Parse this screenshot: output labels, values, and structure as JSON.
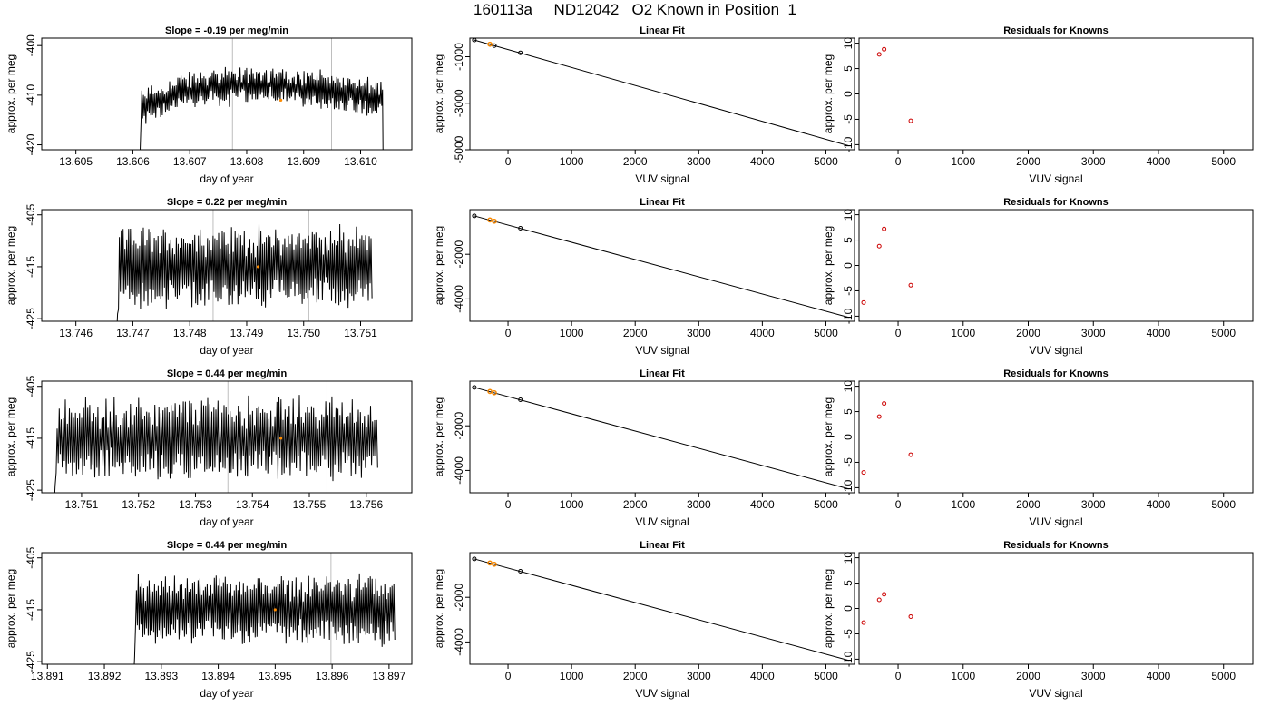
{
  "figure_title": "160113a     ND12042   O2 Known in Position  1",
  "colors": {
    "line": "#000000",
    "marker_fit": "#FF8C00",
    "marker_resid": "#CC0000",
    "vline": "#BEBEBE"
  },
  "chart_data": [
    {
      "type": "line",
      "title": "Slope =  -0.19  per meg/min",
      "xlabel": "day of year",
      "ylabel": "approx. per meg",
      "xlim": [
        13.6044,
        13.6109
      ],
      "ylim": [
        -421,
        -398.5
      ],
      "xticks": [
        13.605,
        13.606,
        13.607,
        13.608,
        13.609,
        13.61
      ],
      "xtick_labels": [
        "13.605",
        "13.606",
        "13.607",
        "13.608",
        "13.609",
        "13.610"
      ],
      "yticks": [
        -420,
        -410,
        -400
      ],
      "ytick_labels": [
        "-420",
        "-410",
        "-400"
      ],
      "vlines": [
        13.60775,
        13.60949
      ],
      "series": {
        "x_start": 13.6061,
        "x_end": 13.6104,
        "n": 300,
        "shape": "A",
        "base": -411,
        "amp": 3,
        "noise": 2.5,
        "dip_level": -430,
        "peak_bump": 3
      },
      "highlight": {
        "x": 13.6086,
        "y": -411
      }
    },
    {
      "type": "scatter",
      "title": "Linear Fit",
      "xlabel": "VUV signal",
      "ylabel": "approx. per meg",
      "xlim": [
        -600,
        5450
      ],
      "ylim": [
        -5000,
        -200
      ],
      "xticks": [
        0,
        1000,
        2000,
        3000,
        4000,
        5000
      ],
      "xtick_labels": [
        "0",
        "1000",
        "2000",
        "3000",
        "4000",
        "5000"
      ],
      "yticks": [
        -5000,
        -3000,
        -1000
      ],
      "ytick_labels": [
        "-5000",
        "-3000",
        "-1000"
      ],
      "fit_line": {
        "x1": -530,
        "y1": -282,
        "x2": 5360,
        "y2": -4828
      },
      "points": [
        {
          "x": -530,
          "y": -282
        },
        {
          "x": -285,
          "y": -463
        },
        {
          "x": -215,
          "y": -520
        },
        {
          "x": 195,
          "y": -832
        }
      ],
      "highlight_points": [
        {
          "x": -285,
          "y": -463
        }
      ]
    },
    {
      "type": "scatter",
      "title": "Residuals for Knowns",
      "xlabel": "VUV signal",
      "ylabel": "approx. per meg",
      "xlim": [
        -600,
        5450
      ],
      "ylim": [
        -11,
        11
      ],
      "xticks": [
        0,
        1000,
        2000,
        3000,
        4000,
        5000
      ],
      "xtick_labels": [
        "0",
        "1000",
        "2000",
        "3000",
        "4000",
        "5000"
      ],
      "yticks": [
        -10,
        -5,
        0,
        5,
        10
      ],
      "ytick_labels": [
        "-10",
        "-5",
        "0",
        "5",
        "10"
      ],
      "points": [
        {
          "x": -290,
          "y": 7.8
        },
        {
          "x": -215,
          "y": 8.8
        },
        {
          "x": 195,
          "y": -5.3
        }
      ]
    },
    {
      "type": "line",
      "title": "Slope =  0.22  per meg/min",
      "xlabel": "day of year",
      "ylabel": "approx. per meg",
      "xlim": [
        13.7454,
        13.7519
      ],
      "ylim": [
        -425.5,
        -404
      ],
      "xticks": [
        13.746,
        13.747,
        13.748,
        13.749,
        13.75,
        13.751
      ],
      "xtick_labels": [
        "13.746",
        "13.747",
        "13.748",
        "13.749",
        "13.750",
        "13.751"
      ],
      "yticks": [
        -425,
        -415,
        -405
      ],
      "ytick_labels": [
        "-425",
        "-415",
        "-405"
      ],
      "vlines": [
        13.74841,
        13.75009
      ],
      "series": {
        "x_start": 13.7467,
        "x_end": 13.7512,
        "n": 280,
        "shape": "osc",
        "base": -415,
        "amp": 7,
        "noise": 3,
        "dip_level": -432
      },
      "highlight": {
        "x": 13.7492,
        "y": -415
      }
    },
    {
      "type": "scatter",
      "title": "Linear Fit",
      "xlabel": "VUV signal",
      "ylabel": "approx. per meg",
      "xlim": [
        -600,
        5450
      ],
      "ylim": [
        -5000,
        0
      ],
      "xticks": [
        0,
        1000,
        2000,
        3000,
        4000,
        5000
      ],
      "xtick_labels": [
        "0",
        "1000",
        "2000",
        "3000",
        "4000",
        "5000"
      ],
      "yticks": [
        -4000,
        -2000
      ],
      "ytick_labels": [
        "-4000",
        "-2000"
      ],
      "fit_line": {
        "x1": -530,
        "y1": -282,
        "x2": 5360,
        "y2": -4828
      },
      "points": [
        {
          "x": -530,
          "y": -282
        },
        {
          "x": -285,
          "y": -463
        },
        {
          "x": -215,
          "y": -520
        },
        {
          "x": 195,
          "y": -832
        }
      ],
      "highlight_points": [
        {
          "x": -285,
          "y": -463
        },
        {
          "x": -215,
          "y": -520
        }
      ]
    },
    {
      "type": "scatter",
      "title": "Residuals for Knowns",
      "xlabel": "VUV signal",
      "ylabel": "approx. per meg",
      "xlim": [
        -600,
        5450
      ],
      "ylim": [
        -11,
        11
      ],
      "xticks": [
        0,
        1000,
        2000,
        3000,
        4000,
        5000
      ],
      "xtick_labels": [
        "0",
        "1000",
        "2000",
        "3000",
        "4000",
        "5000"
      ],
      "yticks": [
        -10,
        -5,
        0,
        5,
        10
      ],
      "ytick_labels": [
        "-10",
        "-5",
        "0",
        "5",
        "10"
      ],
      "points": [
        {
          "x": -530,
          "y": -7.3
        },
        {
          "x": -290,
          "y": 3.8
        },
        {
          "x": -215,
          "y": 7.2
        },
        {
          "x": 195,
          "y": -3.9
        }
      ]
    },
    {
      "type": "line",
      "title": "Slope =  0.44  per meg/min",
      "xlabel": "day of year",
      "ylabel": "approx. per meg",
      "xlim": [
        13.7503,
        13.7568
      ],
      "ylim": [
        -425.5,
        -404
      ],
      "xticks": [
        13.751,
        13.752,
        13.753,
        13.754,
        13.755,
        13.756
      ],
      "xtick_labels": [
        "13.751",
        "13.752",
        "13.753",
        "13.754",
        "13.755",
        "13.756"
      ],
      "yticks": [
        -425,
        -415,
        -405
      ],
      "ytick_labels": [
        "-425",
        "-415",
        "-405"
      ],
      "vlines": [
        13.75357,
        13.75531
      ],
      "series": {
        "x_start": 13.7505,
        "x_end": 13.7562,
        "n": 320,
        "shape": "osc",
        "base": -415,
        "amp": 7,
        "noise": 3.5,
        "dip_level": -432
      },
      "highlight": {
        "x": 13.7545,
        "y": -415
      }
    },
    {
      "type": "scatter",
      "title": "Linear Fit",
      "xlabel": "VUV signal",
      "ylabel": "approx. per meg",
      "xlim": [
        -600,
        5450
      ],
      "ylim": [
        -5000,
        0
      ],
      "xticks": [
        0,
        1000,
        2000,
        3000,
        4000,
        5000
      ],
      "xtick_labels": [
        "0",
        "1000",
        "2000",
        "3000",
        "4000",
        "5000"
      ],
      "yticks": [
        -4000,
        -2000
      ],
      "ytick_labels": [
        "-4000",
        "-2000"
      ],
      "fit_line": {
        "x1": -530,
        "y1": -282,
        "x2": 5360,
        "y2": -4828
      },
      "points": [
        {
          "x": -530,
          "y": -282
        },
        {
          "x": -285,
          "y": -463
        },
        {
          "x": -215,
          "y": -520
        },
        {
          "x": 195,
          "y": -832
        }
      ],
      "highlight_points": [
        {
          "x": -285,
          "y": -463
        },
        {
          "x": -215,
          "y": -520
        }
      ]
    },
    {
      "type": "scatter",
      "title": "Residuals for Knowns",
      "xlabel": "VUV signal",
      "ylabel": "approx. per meg",
      "xlim": [
        -600,
        5450
      ],
      "ylim": [
        -11,
        11
      ],
      "xticks": [
        0,
        1000,
        2000,
        3000,
        4000,
        5000
      ],
      "xtick_labels": [
        "0",
        "1000",
        "2000",
        "3000",
        "4000",
        "5000"
      ],
      "yticks": [
        -10,
        -5,
        0,
        5,
        10
      ],
      "ytick_labels": [
        "-10",
        "-5",
        "0",
        "5",
        "10"
      ],
      "points": [
        {
          "x": -530,
          "y": -7.0
        },
        {
          "x": -290,
          "y": 4.0
        },
        {
          "x": -215,
          "y": 6.6
        },
        {
          "x": 195,
          "y": -3.5
        }
      ]
    },
    {
      "type": "line",
      "title": "Slope =  0.44  per meg/min",
      "xlabel": "day of year",
      "ylabel": "approx. per meg",
      "xlim": [
        13.8909,
        13.8974
      ],
      "ylim": [
        -425.5,
        -404
      ],
      "xticks": [
        13.891,
        13.892,
        13.893,
        13.894,
        13.895,
        13.896,
        13.897
      ],
      "xtick_labels": [
        "13.891",
        "13.892",
        "13.893",
        "13.894",
        "13.895",
        "13.896",
        "13.897"
      ],
      "yticks": [
        -425,
        -415,
        -405
      ],
      "ytick_labels": [
        "-425",
        "-415",
        "-405"
      ],
      "vlines": [
        13.89598
      ],
      "series": {
        "x_start": 13.8925,
        "x_end": 13.8971,
        "n": 290,
        "shape": "osc",
        "base": -415,
        "amp": 6,
        "noise": 2.5,
        "dip_level": -432
      },
      "highlight": {
        "x": 13.895,
        "y": -415
      }
    },
    {
      "type": "scatter",
      "title": "Linear Fit",
      "xlabel": "VUV signal",
      "ylabel": "approx. per meg",
      "xlim": [
        -600,
        5450
      ],
      "ylim": [
        -5000,
        0
      ],
      "xticks": [
        0,
        1000,
        2000,
        3000,
        4000,
        5000
      ],
      "xtick_labels": [
        "0",
        "1000",
        "2000",
        "3000",
        "4000",
        "5000"
      ],
      "yticks": [
        -4000,
        -2000
      ],
      "ytick_labels": [
        "-4000",
        "-2000"
      ],
      "fit_line": {
        "x1": -530,
        "y1": -282,
        "x2": 5360,
        "y2": -4828
      },
      "points": [
        {
          "x": -530,
          "y": -282
        },
        {
          "x": -285,
          "y": -463
        },
        {
          "x": -215,
          "y": -520
        },
        {
          "x": 195,
          "y": -832
        }
      ],
      "highlight_points": [
        {
          "x": -285,
          "y": -463
        },
        {
          "x": -215,
          "y": -520
        }
      ]
    },
    {
      "type": "scatter",
      "title": "Residuals for Knowns",
      "xlabel": "VUV signal",
      "ylabel": "approx. per meg",
      "xlim": [
        -600,
        5450
      ],
      "ylim": [
        -11,
        11
      ],
      "xticks": [
        0,
        1000,
        2000,
        3000,
        4000,
        5000
      ],
      "xtick_labels": [
        "0",
        "1000",
        "2000",
        "3000",
        "4000",
        "5000"
      ],
      "yticks": [
        -10,
        -5,
        0,
        5,
        10
      ],
      "ytick_labels": [
        "-10",
        "-5",
        "0",
        "5",
        "10"
      ],
      "points": [
        {
          "x": -530,
          "y": -2.8
        },
        {
          "x": -290,
          "y": 1.7
        },
        {
          "x": -215,
          "y": 2.8
        },
        {
          "x": 195,
          "y": -1.6
        }
      ]
    }
  ]
}
